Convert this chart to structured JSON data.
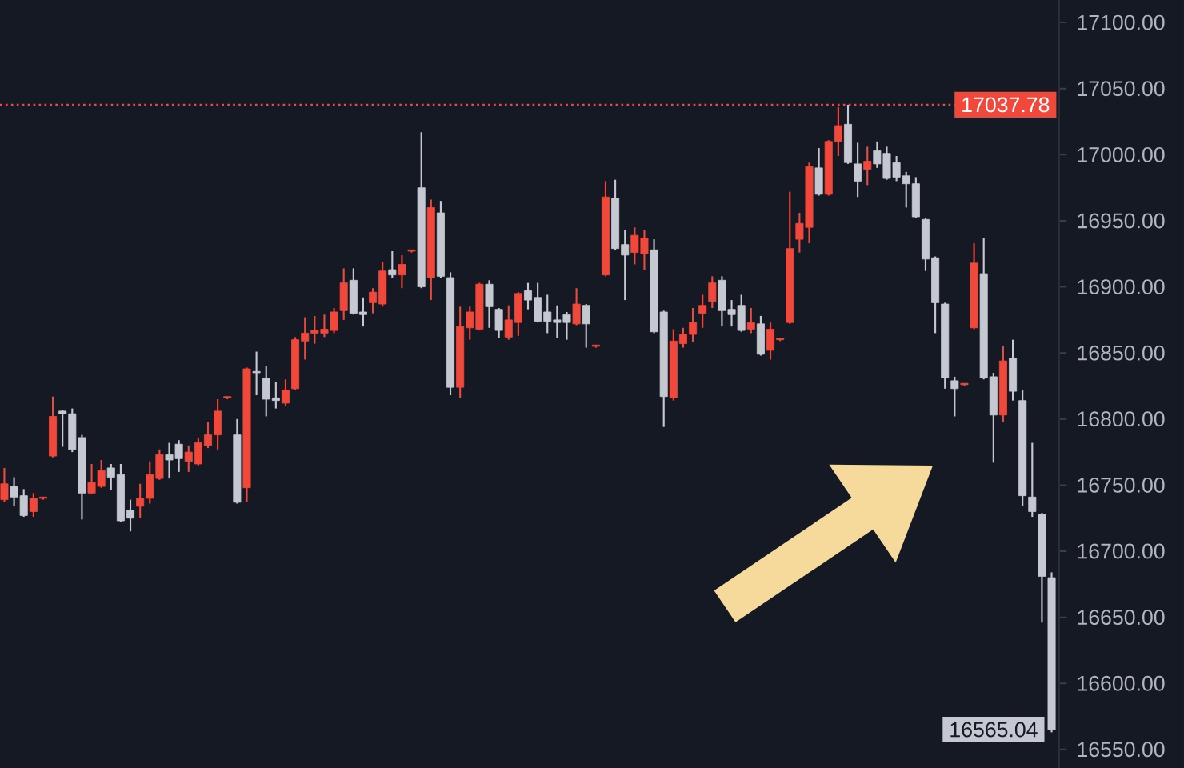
{
  "chart_data": {
    "type": "candlestick",
    "categories": [
      null,
      null,
      null,
      null,
      null,
      null,
      null,
      null,
      null,
      null,
      null,
      null,
      null,
      null,
      null,
      null,
      null,
      null,
      null,
      null,
      null,
      null,
      null,
      null,
      null,
      null,
      null,
      null,
      null,
      null,
      null,
      null,
      null,
      null,
      null,
      null,
      null,
      null,
      null,
      null,
      null,
      null,
      null,
      null,
      null,
      null,
      null,
      null,
      null,
      null,
      null,
      null,
      null,
      null,
      null,
      null,
      null,
      null,
      null,
      null,
      null,
      null,
      null,
      null,
      null,
      null,
      null,
      null,
      null,
      null,
      null,
      null,
      null,
      null,
      null,
      null,
      null,
      null,
      null,
      null,
      null,
      null,
      null,
      null,
      null,
      null,
      null,
      null,
      null,
      null,
      null,
      null,
      null,
      null,
      null,
      null,
      null,
      null,
      null,
      null,
      null,
      null,
      null,
      null,
      null,
      null,
      null,
      null,
      null
    ],
    "ohlc": [
      [
        16739,
        16763,
        16737,
        16751
      ],
      [
        16749,
        16756,
        16734,
        16741
      ],
      [
        16742,
        16747,
        16726,
        16727
      ],
      [
        16730,
        16744,
        16726,
        16740
      ],
      [
        16740,
        16741,
        16739,
        16741
      ],
      [
        16772,
        16817,
        16771,
        16802
      ],
      [
        16806,
        16807,
        16779,
        16804
      ],
      [
        16804,
        16808,
        16775,
        16777
      ],
      [
        16786,
        16788,
        16724,
        16744
      ],
      [
        16744,
        16766,
        16743,
        16752
      ],
      [
        16749,
        16769,
        16748,
        16761
      ],
      [
        16763,
        16766,
        16746,
        16756
      ],
      [
        16758,
        16766,
        16722,
        16723
      ],
      [
        16731,
        16739,
        16715,
        16725
      ],
      [
        16734,
        16751,
        16725,
        16740
      ],
      [
        16740,
        16768,
        16736,
        16758
      ],
      [
        16755,
        16777,
        16754,
        16773
      ],
      [
        16773,
        16782,
        16755,
        16769
      ],
      [
        16781,
        16784,
        16760,
        16770
      ],
      [
        16768,
        16780,
        16760,
        16775
      ],
      [
        16766,
        16786,
        16765,
        16782
      ],
      [
        16780,
        16798,
        16778,
        16788
      ],
      [
        16788,
        16815,
        16777,
        16806
      ],
      [
        16816,
        16817,
        16815,
        16817
      ],
      [
        16788,
        16800,
        16736,
        16737
      ],
      [
        16748,
        16839,
        16737,
        16838
      ],
      [
        16836,
        16851,
        16818,
        16835
      ],
      [
        16831,
        16840,
        16802,
        16815
      ],
      [
        16816,
        16828,
        16808,
        16814
      ],
      [
        16812,
        16830,
        16810,
        16822
      ],
      [
        16823,
        16862,
        16822,
        16860
      ],
      [
        16859,
        16877,
        16845,
        16865
      ],
      [
        16865,
        16878,
        16857,
        16867
      ],
      [
        16865,
        16879,
        16862,
        16868
      ],
      [
        16867,
        16884,
        16865,
        16881
      ],
      [
        16882,
        16914,
        16875,
        16903
      ],
      [
        16905,
        16914,
        16879,
        16880
      ],
      [
        16881,
        16892,
        16870,
        16879
      ],
      [
        16888,
        16899,
        16880,
        16896
      ],
      [
        16887,
        16919,
        16885,
        16912
      ],
      [
        16913,
        16927,
        16907,
        16909
      ],
      [
        16909,
        16924,
        16899,
        16917
      ],
      [
        16927,
        16928,
        16926,
        16928
      ],
      [
        16975,
        17017,
        16899,
        16900
      ],
      [
        16907,
        16966,
        16890,
        16960
      ],
      [
        16956,
        16965,
        16907,
        16908
      ],
      [
        16907,
        16911,
        16818,
        16824
      ],
      [
        16824,
        16885,
        16816,
        16870
      ],
      [
        16869,
        16885,
        16860,
        16881
      ],
      [
        16868,
        16903,
        16867,
        16902
      ],
      [
        16902,
        16905,
        16869,
        16885
      ],
      [
        16883,
        16884,
        16861,
        16867
      ],
      [
        16862,
        16886,
        16860,
        16875
      ],
      [
        16873,
        16896,
        16863,
        16895
      ],
      [
        16897,
        16903,
        16883,
        16890
      ],
      [
        16892,
        16903,
        16873,
        16874
      ],
      [
        16881,
        16894,
        16865,
        16874
      ],
      [
        16875,
        16886,
        16861,
        16873
      ],
      [
        16879,
        16881,
        16860,
        16873
      ],
      [
        16872,
        16899,
        16871,
        16887
      ],
      [
        16886,
        16887,
        16854,
        16872
      ],
      [
        16855,
        16856,
        16854,
        16856
      ],
      [
        16909,
        16980,
        16908,
        16968
      ],
      [
        16967,
        16981,
        16928,
        16929
      ],
      [
        16932,
        16943,
        16890,
        16924
      ],
      [
        16926,
        16945,
        16917,
        16939
      ],
      [
        16925,
        16943,
        16913,
        16937
      ],
      [
        16928,
        16936,
        16865,
        16866
      ],
      [
        16881,
        16882,
        16794,
        16817
      ],
      [
        16816,
        16868,
        16814,
        16859
      ],
      [
        16857,
        16869,
        16854,
        16864
      ],
      [
        16864,
        16884,
        16858,
        16873
      ],
      [
        16880,
        16894,
        16869,
        16886
      ],
      [
        16889,
        16908,
        16884,
        16903
      ],
      [
        16905,
        16908,
        16870,
        16882
      ],
      [
        16883,
        16890,
        16870,
        16879
      ],
      [
        16886,
        16894,
        16866,
        16867
      ],
      [
        16868,
        16884,
        16865,
        16873
      ],
      [
        16872,
        16878,
        16848,
        16849
      ],
      [
        16852,
        16873,
        16845,
        16868
      ],
      [
        16860,
        16861,
        16859,
        16861
      ],
      [
        16873,
        16972,
        16872,
        16929
      ],
      [
        16936,
        16956,
        16926,
        16948
      ],
      [
        16945,
        16994,
        16933,
        16991
      ],
      [
        16990,
        17005,
        16969,
        16970
      ],
      [
        16970,
        17011,
        16969,
        17010
      ],
      [
        17010,
        17036,
        16999,
        17022
      ],
      [
        17023,
        17037.78,
        16993,
        16994
      ],
      [
        16993,
        17009,
        16968,
        16980
      ],
      [
        16989,
        17006,
        16977,
        16995
      ],
      [
        17003,
        17010,
        16990,
        16993
      ],
      [
        17001,
        17006,
        16981,
        16982
      ],
      [
        16994,
        16999,
        16980,
        16983
      ],
      [
        16984,
        16987,
        16960,
        16978
      ],
      [
        16978,
        16983,
        16952,
        16953
      ],
      [
        16951,
        16952,
        16912,
        16921
      ],
      [
        16922,
        16923,
        16865,
        16888
      ],
      [
        16887,
        16888,
        16823,
        16831
      ],
      [
        16829,
        16832,
        16802,
        16823
      ],
      [
        16826,
        16827,
        16825,
        16827
      ],
      [
        16869,
        16933,
        16868,
        16918
      ],
      [
        16910,
        16937,
        16830,
        16831
      ],
      [
        16832,
        16835,
        16767,
        16803
      ],
      [
        16803,
        16855,
        16798,
        16844
      ],
      [
        16846,
        16860,
        16814,
        16821
      ],
      [
        16814,
        16822,
        16734,
        16742
      ],
      [
        16741,
        16782,
        16726,
        16730
      ],
      [
        16728,
        16729,
        16646,
        16681
      ],
      [
        16680,
        16684,
        16563,
        16565.04
      ]
    ],
    "colors": [
      "#f0483a",
      "#c5c8d0",
      "#c5c8d0",
      "#f0483a",
      "#f0483a",
      "#f0483a",
      "#c5c8d0",
      "#c5c8d0",
      "#c5c8d0",
      "#f0483a",
      "#f0483a",
      "#c5c8d0",
      "#c5c8d0",
      "#c5c8d0",
      "#f0483a",
      "#f0483a",
      "#f0483a",
      "#c5c8d0",
      "#c5c8d0",
      "#f0483a",
      "#f0483a",
      "#f0483a",
      "#f0483a",
      "#f0483a",
      "#c5c8d0",
      "#f0483a",
      "#c5c8d0",
      "#c5c8d0",
      "#c5c8d0",
      "#f0483a",
      "#f0483a",
      "#f0483a",
      "#f0483a",
      "#f0483a",
      "#f0483a",
      "#f0483a",
      "#c5c8d0",
      "#c5c8d0",
      "#f0483a",
      "#f0483a",
      "#c5c8d0",
      "#f0483a",
      "#f0483a",
      "#c5c8d0",
      "#f0483a",
      "#c5c8d0",
      "#c5c8d0",
      "#f0483a",
      "#f0483a",
      "#f0483a",
      "#c5c8d0",
      "#c5c8d0",
      "#f0483a",
      "#f0483a",
      "#c5c8d0",
      "#c5c8d0",
      "#c5c8d0",
      "#c5c8d0",
      "#c5c8d0",
      "#f0483a",
      "#c5c8d0",
      "#f0483a",
      "#f0483a",
      "#c5c8d0",
      "#c5c8d0",
      "#f0483a",
      "#f0483a",
      "#c5c8d0",
      "#c5c8d0",
      "#f0483a",
      "#f0483a",
      "#f0483a",
      "#f0483a",
      "#f0483a",
      "#c5c8d0",
      "#c5c8d0",
      "#c5c8d0",
      "#f0483a",
      "#c5c8d0",
      "#f0483a",
      "#f0483a",
      "#f0483a",
      "#f0483a",
      "#f0483a",
      "#c5c8d0",
      "#f0483a",
      "#f0483a",
      "#c5c8d0",
      "#c5c8d0",
      "#f0483a",
      "#c5c8d0",
      "#c5c8d0",
      "#c5c8d0",
      "#c5c8d0",
      "#c5c8d0",
      "#c5c8d0",
      "#c5c8d0",
      "#c5c8d0",
      "#c5c8d0",
      "#f0483a",
      "#f0483a",
      "#c5c8d0",
      "#c5c8d0",
      "#f0483a",
      "#c5c8d0",
      "#c5c8d0",
      "#c5c8d0",
      "#c5c8d0",
      "#c5c8d0"
    ],
    "ylim": [
      16536,
      17117
    ],
    "yticks": [
      {
        "value": 16550,
        "label": "16550.00"
      },
      {
        "value": 16600,
        "label": "16600.00"
      },
      {
        "value": 16650,
        "label": "16650.00"
      },
      {
        "value": 16700,
        "label": "16700.00"
      },
      {
        "value": 16750,
        "label": "16750.00"
      },
      {
        "value": 16800,
        "label": "16800.00"
      },
      {
        "value": 16850,
        "label": "16850.00"
      },
      {
        "value": 16900,
        "label": "16900.00"
      },
      {
        "value": 16950,
        "label": "16950.00"
      },
      {
        "value": 17000,
        "label": "17000.00"
      },
      {
        "value": 17050,
        "label": "17050.00"
      },
      {
        "value": 17100,
        "label": "17100.00"
      }
    ],
    "tick_labels": "y",
    "ref_lines": [
      {
        "axis": "y",
        "value": 17037.78,
        "label": "17037.78",
        "color": "#f0483a",
        "line_style": "dotted"
      }
    ],
    "annotations": [
      "16565.04"
    ]
  }
}
